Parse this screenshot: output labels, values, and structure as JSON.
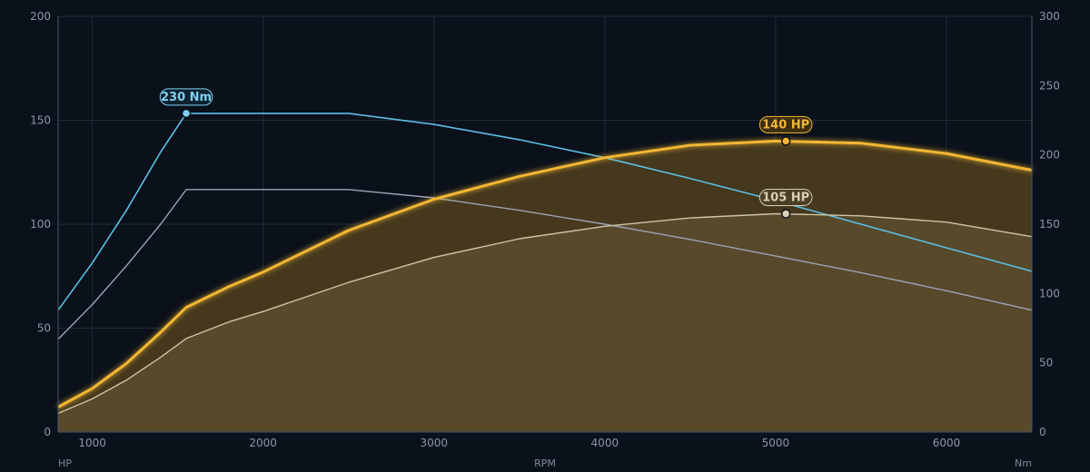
{
  "chart_data": {
    "type": "line",
    "title": "",
    "x_axis": {
      "label": "RPM",
      "range": [
        800,
        6500
      ],
      "ticks": [
        1000,
        2000,
        3000,
        4000,
        5000,
        6000
      ]
    },
    "y_left": {
      "label": "HP",
      "range": [
        0,
        200
      ],
      "ticks": [
        0,
        50,
        100,
        150,
        200
      ]
    },
    "y_right": {
      "label": "Nm",
      "range": [
        0,
        300
      ],
      "ticks": [
        0,
        50,
        100,
        150,
        200,
        250,
        300
      ]
    },
    "grid": true,
    "series": [
      {
        "axis": "left",
        "color": "#f2b632",
        "fill": "#4b3c1d",
        "x": [
          800,
          1000,
          1200,
          1400,
          1550,
          1800,
          2000,
          2500,
          3000,
          3500,
          4000,
          4500,
          5000,
          5500,
          6000,
          6500
        ],
        "y": [
          12,
          21,
          33,
          48,
          60,
          70,
          77,
          97,
          112,
          123,
          132,
          138,
          140,
          139,
          134,
          126
        ]
      },
      {
        "axis": "left",
        "color": "#cfc4a8",
        "fill": "#5a4b2c",
        "x": [
          800,
          1000,
          1200,
          1400,
          1550,
          1800,
          2000,
          2500,
          3000,
          3500,
          4000,
          4500,
          5000,
          5500,
          6000,
          6500
        ],
        "y": [
          9,
          16,
          25,
          36,
          45,
          53,
          58,
          72,
          84,
          93,
          99,
          103,
          105,
          104,
          101,
          94
        ]
      },
      {
        "axis": "right",
        "color": "#5bbfe6",
        "x": [
          800,
          1000,
          1200,
          1400,
          1550,
          2000,
          2500,
          3000,
          3500,
          4000,
          4500,
          5000,
          5500,
          6000,
          6500
        ],
        "y": [
          88,
          122,
          160,
          202,
          230,
          230,
          230,
          222,
          211,
          198,
          183,
          167,
          150,
          133,
          116
        ]
      },
      {
        "axis": "right",
        "color": "#9aa3b5",
        "x": [
          800,
          1000,
          1200,
          1400,
          1550,
          2000,
          2500,
          3000,
          3500,
          4000,
          4500,
          5000,
          5500,
          6000,
          6500
        ],
        "y": [
          67,
          92,
          120,
          150,
          175,
          175,
          175,
          169,
          160,
          150,
          139,
          127,
          115,
          102,
          88
        ]
      }
    ],
    "annotations": [
      {
        "text": "140 HP",
        "x": 5060,
        "y": 140,
        "axis": "left",
        "color": "#f2b632",
        "bg": "#3b2e12"
      },
      {
        "text": "105 HP",
        "x": 5060,
        "y": 105,
        "axis": "left",
        "color": "#d9cfb6",
        "bg": "#4a3e24"
      },
      {
        "text": "230 Nm",
        "x": 1550,
        "y": 230,
        "axis": "right",
        "color": "#7fd0f0",
        "bg": "#0e2230"
      }
    ]
  }
}
